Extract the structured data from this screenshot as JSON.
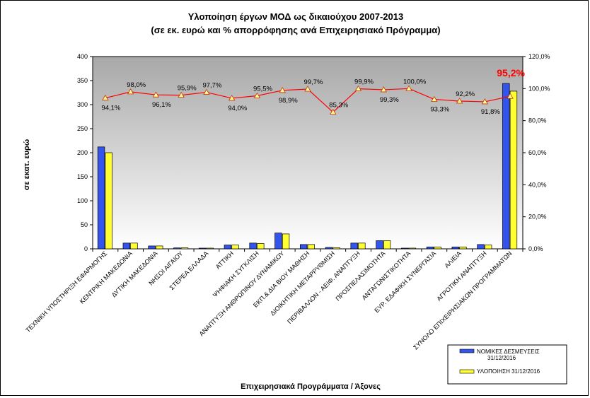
{
  "chart_data": {
    "type": "bar",
    "title": "Υλοποίηση έργων ΜΟΔ ως δικαιούχου 2007-2013",
    "subtitle": "(σε εκ. ευρώ και % απορρόφησης ανά Επιχειρησιακό Πρόγραμμα)",
    "xlabel": "Επιχειρησιακά  Προγράμματα   / Άξονες",
    "ylabel": "σε εκατ. ευρώ",
    "ylim": [
      0,
      400
    ],
    "y2lim": [
      0,
      120
    ],
    "yticks": [
      "0",
      "50",
      "100",
      "150",
      "200",
      "250",
      "300",
      "350",
      "400"
    ],
    "y2ticks": [
      "0,0%",
      "20,0%",
      "40,0%",
      "60,0%",
      "80,0%",
      "100,0%",
      "120,0%"
    ],
    "categories": [
      "ΤΕΧΝΙΚΗ ΥΠΟΣΤΗΡΙΞΗ ΕΦΑΡΜΟΓΗΣ",
      "ΚΕΝΤΡΙΚΗ ΜΑΚΕΔΟΝΙΑ",
      "ΔΥΤΙΚΗ ΜΑΚΕΔΟΝΙΑ",
      "ΝΗΣΟΙ ΑΙΓΑΙΟΥ",
      "ΣΤΕΡΕΑ ΕΛΛΑΔΑ",
      "ΑΤΤΙΚΗ",
      "ΨΗΦΙΑΚΗ ΣΥΓΚΛΙΣΗ",
      "ΑΝΑΠΤΥΞΗ ΑΝΘΡΩΠΙΝΟΥ ΔΥΝΑΜΙΚΟΥ",
      "ΕΚΠ.& ΔΙΑ ΒΙΟΥ ΜΑΘΗΣΗ",
      "ΔΙΟΙΚΗΤΙΚΗ ΜΕΤΑΡΡΥΘΜΙΣΗ",
      "ΠΕΡΙΒΑΛΛΟΝ - ΑΕΙΦ. ΑΝΑΠΤΥΞΗ",
      "ΠΡΟΣΠΕΛΑΣΙΜΟΤΗΤΑ",
      "ΑΝΤΑΓΩΝΙΣΤΙΚΟΤΗΤΑ",
      "ΕΥΡ. ΕΔΑΦΙΚΗ ΣΥΝΕΡΓΑΣΙΑ",
      "ΑΛΙΕΙΑ",
      "ΑΓΡΟΤΙΚΗ ΑΝΑΠΤΥΞΗ",
      "ΣΥΝΟΛΟ ΕΠΙΧΕΙΡΗΣΙΑΚΩΝ ΠΡΟΓΡΑΜΜΑΤΩΝ"
    ],
    "series": [
      {
        "name": "ΝΟΜΙΚΕΣ ΔΕΣΜΕΥΣΕΙΣ 31/12/2016",
        "axis": "left",
        "color": "#3355ee",
        "values": [
          212,
          12,
          6,
          2,
          1.5,
          8,
          12,
          33,
          9,
          3,
          12,
          17,
          1.5,
          4,
          4,
          9,
          344
        ]
      },
      {
        "name": "ΥΛΟΠΟΙΗΣΗ 31/12/2016",
        "axis": "left",
        "color": "#ffff33",
        "values": [
          200,
          12,
          6,
          2,
          1.5,
          8,
          11,
          31,
          9,
          2.5,
          12,
          17,
          1.5,
          4,
          4,
          8,
          328
        ]
      },
      {
        "name": "% απορρόφησης",
        "axis": "right",
        "type": "line",
        "color": "#ff0000",
        "values": [
          94.1,
          98.0,
          96.1,
          95.9,
          97.7,
          94.0,
          95.5,
          98.9,
          99.7,
          85.3,
          99.9,
          99.3,
          100.0,
          93.3,
          92.2,
          91.8,
          95.2
        ],
        "labels": [
          "94,1%",
          "98,0%",
          "96,1%",
          "95,9%",
          "97,7%",
          "94,0%",
          "95,5%",
          "98,9%",
          "99,7%",
          "85,3%",
          "99,9%",
          "99,3%",
          "100,0%",
          "93,3%",
          "92,2%",
          "91,8%",
          "95,2%"
        ]
      }
    ],
    "legend": {
      "position": "bottom-right",
      "entries": [
        "ΝΟΜΙΚΕΣ ΔΕΣΜΕΥΣΕΙΣ 31/12/2016",
        "ΥΛΟΠΟΙΗΣΗ 31/12/2016"
      ]
    },
    "colors": {
      "plot_bg_top": "#a8a8a8",
      "plot_bg_bottom": "#ffffff",
      "line": "#ff0000",
      "marker_fill": "#ffff99",
      "marker_stroke": "#cc3300"
    }
  }
}
